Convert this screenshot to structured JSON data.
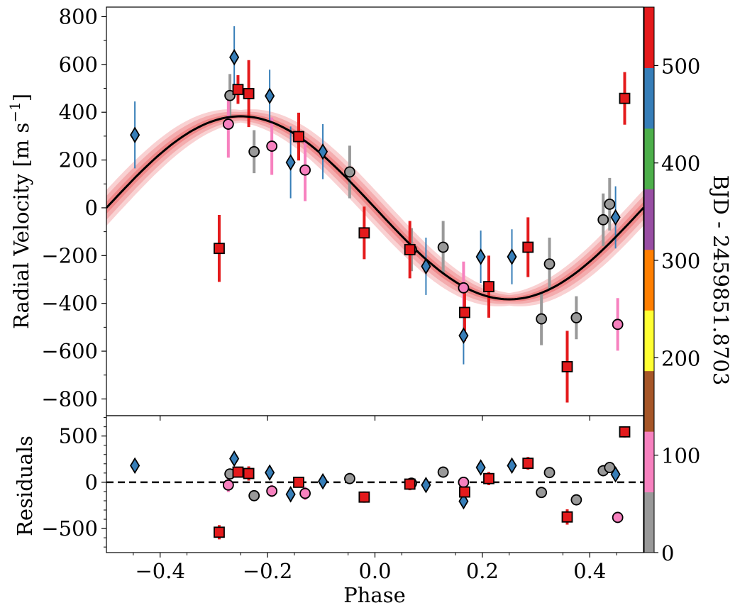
{
  "chart_data": {
    "type": "scatter",
    "title": "",
    "xlabel": "Phase",
    "xlim": [
      -0.5,
      0.5
    ],
    "xticks": [
      -0.4,
      -0.2,
      0.0,
      0.2,
      0.4
    ],
    "xtick_labels": [
      "−0.4",
      "−0.2",
      "0.0",
      "0.2",
      "0.4"
    ],
    "top_panel": {
      "ylabel_text": "Radial Velocity [m s",
      "ylabel_sup": "−1",
      "ylabel_close": "]",
      "ylim": [
        -870,
        840
      ],
      "yticks": [
        800,
        600,
        400,
        200,
        0,
        -200,
        -400,
        -600,
        -800
      ],
      "ytick_labels": [
        "800",
        "600",
        "400",
        "200",
        "0",
        "−200",
        "−400",
        "−600",
        "−800"
      ],
      "model": {
        "amplitude": 383,
        "phase_at_zero": 0.0,
        "period_in_phase": 1.0,
        "color": "#000000"
      },
      "bands": [
        {
          "half_width": 75,
          "color": "#e31a1c",
          "opacity": 0.2
        },
        {
          "half_width": 50,
          "color": "#e31a1c",
          "opacity": 0.2
        },
        {
          "half_width": 25,
          "color": "#e31a1c",
          "opacity": 0.25
        }
      ]
    },
    "bottom_panel": {
      "ylabel": "Residuals",
      "ylim": [
        -760,
        720
      ],
      "yticks": [
        500,
        0,
        -500
      ],
      "ytick_labels": [
        "500",
        "0",
        "−500"
      ],
      "zero_line": "dashed"
    },
    "colorbar": {
      "label": "BJD - 2459851.8703",
      "range": [
        0,
        560
      ],
      "ticks": [
        0,
        100,
        200,
        300,
        400,
        500
      ],
      "tick_labels": [
        "0",
        "100",
        "200",
        "300",
        "400",
        "500"
      ],
      "colors": [
        "#999999",
        "#f781bf",
        "#a65628",
        "#ffff33",
        "#ff7f00",
        "#984ea3",
        "#4daf4a",
        "#377eb8",
        "#e41a1c"
      ]
    },
    "series": [
      {
        "name": "gray circles",
        "marker": "circle",
        "color": "#999999",
        "points": [
          {
            "x": -0.27,
            "y": 470,
            "err": 90,
            "res": 90
          },
          {
            "x": -0.225,
            "y": 235,
            "err": 90,
            "res": -145
          },
          {
            "x": -0.047,
            "y": 150,
            "err": 110,
            "res": 40
          },
          {
            "x": 0.068,
            "y": -175,
            "err": 90,
            "res": -10
          },
          {
            "x": 0.127,
            "y": -165,
            "err": 110,
            "res": 110
          },
          {
            "x": 0.31,
            "y": -465,
            "err": 110,
            "res": -110
          },
          {
            "x": 0.325,
            "y": -235,
            "err": 110,
            "res": 105
          },
          {
            "x": 0.375,
            "y": -460,
            "err": 90,
            "res": -190
          },
          {
            "x": 0.425,
            "y": -50,
            "err": 110,
            "res": 125
          },
          {
            "x": 0.437,
            "y": 15,
            "err": 110,
            "res": 160
          }
        ]
      },
      {
        "name": "pink circles",
        "marker": "circle",
        "color": "#f781bf",
        "points": [
          {
            "x": -0.273,
            "y": 350,
            "err": 140,
            "res": -30
          },
          {
            "x": -0.192,
            "y": 258,
            "err": 120,
            "res": -95
          },
          {
            "x": -0.13,
            "y": 158,
            "err": 130,
            "res": -120
          },
          {
            "x": 0.165,
            "y": -335,
            "err": 110,
            "res": 0
          },
          {
            "x": 0.452,
            "y": -488,
            "err": 110,
            "res": -380
          }
        ]
      },
      {
        "name": "blue diamonds",
        "marker": "diamond",
        "color": "#377eb8",
        "points": [
          {
            "x": -0.447,
            "y": 305,
            "err": 140,
            "res": 180
          },
          {
            "x": -0.262,
            "y": 630,
            "err": 130,
            "res": 255
          },
          {
            "x": -0.196,
            "y": 468,
            "err": 110,
            "res": 105
          },
          {
            "x": -0.157,
            "y": 190,
            "err": 150,
            "res": -130
          },
          {
            "x": -0.097,
            "y": 235,
            "err": 115,
            "res": 10
          },
          {
            "x": 0.095,
            "y": -245,
            "err": 120,
            "res": -30
          },
          {
            "x": 0.165,
            "y": -535,
            "err": 120,
            "res": -205
          },
          {
            "x": 0.197,
            "y": -205,
            "err": 110,
            "res": 160
          },
          {
            "x": 0.255,
            "y": -205,
            "err": 115,
            "res": 180
          },
          {
            "x": 0.448,
            "y": -40,
            "err": 130,
            "res": 85
          }
        ]
      },
      {
        "name": "red squares",
        "marker": "square",
        "color": "#e41a1c",
        "points": [
          {
            "x": -0.29,
            "y": -170,
            "err": 140,
            "res": -540
          },
          {
            "x": -0.255,
            "y": 495,
            "err": 60,
            "res": 110
          },
          {
            "x": -0.235,
            "y": 478,
            "err": 140,
            "res": 95
          },
          {
            "x": -0.142,
            "y": 298,
            "err": 100,
            "res": 0
          },
          {
            "x": -0.02,
            "y": -105,
            "err": 110,
            "res": -160
          },
          {
            "x": 0.065,
            "y": -175,
            "err": 120,
            "res": -20
          },
          {
            "x": 0.167,
            "y": -438,
            "err": 120,
            "res": -105
          },
          {
            "x": 0.212,
            "y": -330,
            "err": 130,
            "res": 40
          },
          {
            "x": 0.285,
            "y": -165,
            "err": 125,
            "res": 205
          },
          {
            "x": 0.358,
            "y": -665,
            "err": 150,
            "res": -375
          },
          {
            "x": 0.465,
            "y": 458,
            "err": 110,
            "res": 545
          }
        ]
      }
    ]
  }
}
